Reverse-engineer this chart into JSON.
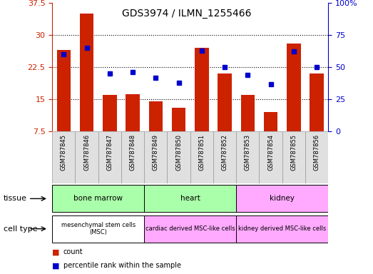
{
  "title": "GDS3974 / ILMN_1255466",
  "samples": [
    "GSM787845",
    "GSM787846",
    "GSM787847",
    "GSM787848",
    "GSM787849",
    "GSM787850",
    "GSM787851",
    "GSM787852",
    "GSM787853",
    "GSM787854",
    "GSM787855",
    "GSM787856"
  ],
  "counts": [
    26.5,
    35.0,
    16.0,
    16.2,
    14.5,
    13.0,
    27.0,
    21.0,
    16.0,
    12.0,
    28.0,
    21.0
  ],
  "percentiles": [
    60,
    65,
    45,
    46,
    42,
    38,
    63,
    50,
    44,
    37,
    62,
    50
  ],
  "ylim_left": [
    7.5,
    37.5
  ],
  "ylim_right": [
    0,
    100
  ],
  "yticks_left": [
    7.5,
    15,
    22.5,
    30,
    37.5
  ],
  "yticks_right": [
    0,
    25,
    50,
    75,
    100
  ],
  "ytick_labels_left": [
    "7.5",
    "15",
    "22.5",
    "30",
    "37.5"
  ],
  "ytick_labels_right": [
    "0",
    "25",
    "50",
    "75",
    "100%"
  ],
  "bar_color": "#cc2200",
  "dot_color": "#0000cc",
  "background_color": "#ffffff",
  "tissue_spans": [
    {
      "label": "bone marrow",
      "start": 0,
      "end": 3,
      "color": "#aaffaa"
    },
    {
      "label": "heart",
      "start": 4,
      "end": 7,
      "color": "#aaffaa"
    },
    {
      "label": "kidney",
      "start": 8,
      "end": 11,
      "color": "#ffaaff"
    }
  ],
  "cell_spans": [
    {
      "label": "mesenchymal stem cells\n(MSC)",
      "start": 0,
      "end": 3,
      "color": "#ffffff"
    },
    {
      "label": "cardiac derived MSC-like cells",
      "start": 4,
      "end": 7,
      "color": "#ffaaff"
    },
    {
      "label": "kidney derived MSC-like cells",
      "start": 8,
      "end": 11,
      "color": "#ffaaff"
    }
  ],
  "legend_items": [
    {
      "label": "count",
      "color": "#cc2200"
    },
    {
      "label": "percentile rank within the sample",
      "color": "#0000cc"
    }
  ],
  "tissue_row_label": "tissue",
  "celltype_row_label": "cell type"
}
